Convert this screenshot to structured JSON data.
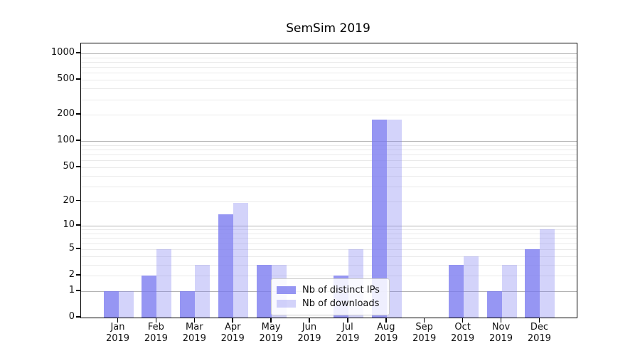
{
  "title": "SemSim 2019",
  "legend": {
    "items": [
      {
        "label": "Nb of distinct IPs",
        "color": "rgba(121,121,239,0.78)"
      },
      {
        "label": "Nb of downloads",
        "color": "rgba(121,121,239,0.33)"
      }
    ]
  },
  "chart_data": {
    "type": "bar",
    "title": "SemSim 2019",
    "categories": [
      "Jan 2019",
      "Feb 2019",
      "Mar 2019",
      "Apr 2019",
      "May 2019",
      "Jun 2019",
      "Jul 2019",
      "Aug 2019",
      "Sep 2019",
      "Oct 2019",
      "Nov 2019",
      "Dec 2019"
    ],
    "series": [
      {
        "name": "Nb of distinct IPs",
        "color": "rgba(121,121,239,0.78)",
        "values": [
          1,
          2,
          1,
          14,
          3,
          0,
          2,
          175,
          0,
          3,
          1,
          5
        ]
      },
      {
        "name": "Nb of downloads",
        "color": "rgba(121,121,239,0.33)",
        "values": [
          1,
          5,
          3,
          19,
          3,
          0,
          5,
          175,
          0,
          4,
          3,
          9
        ]
      }
    ],
    "xlabel": "",
    "ylabel": "",
    "yscale": "symlog-log1p",
    "ylim": [
      0,
      1290
    ],
    "yticks": [
      0,
      1,
      2,
      5,
      10,
      20,
      50,
      100,
      200,
      500,
      1000
    ],
    "gridlines_major": [
      1,
      10,
      100,
      1000
    ],
    "gridlines_minor": [
      2,
      3,
      4,
      5,
      6,
      7,
      8,
      9,
      20,
      30,
      40,
      50,
      60,
      70,
      80,
      90,
      200,
      300,
      400,
      500,
      600,
      700,
      800,
      900
    ],
    "grid": "on",
    "legend_position": "lower-center-inside"
  }
}
